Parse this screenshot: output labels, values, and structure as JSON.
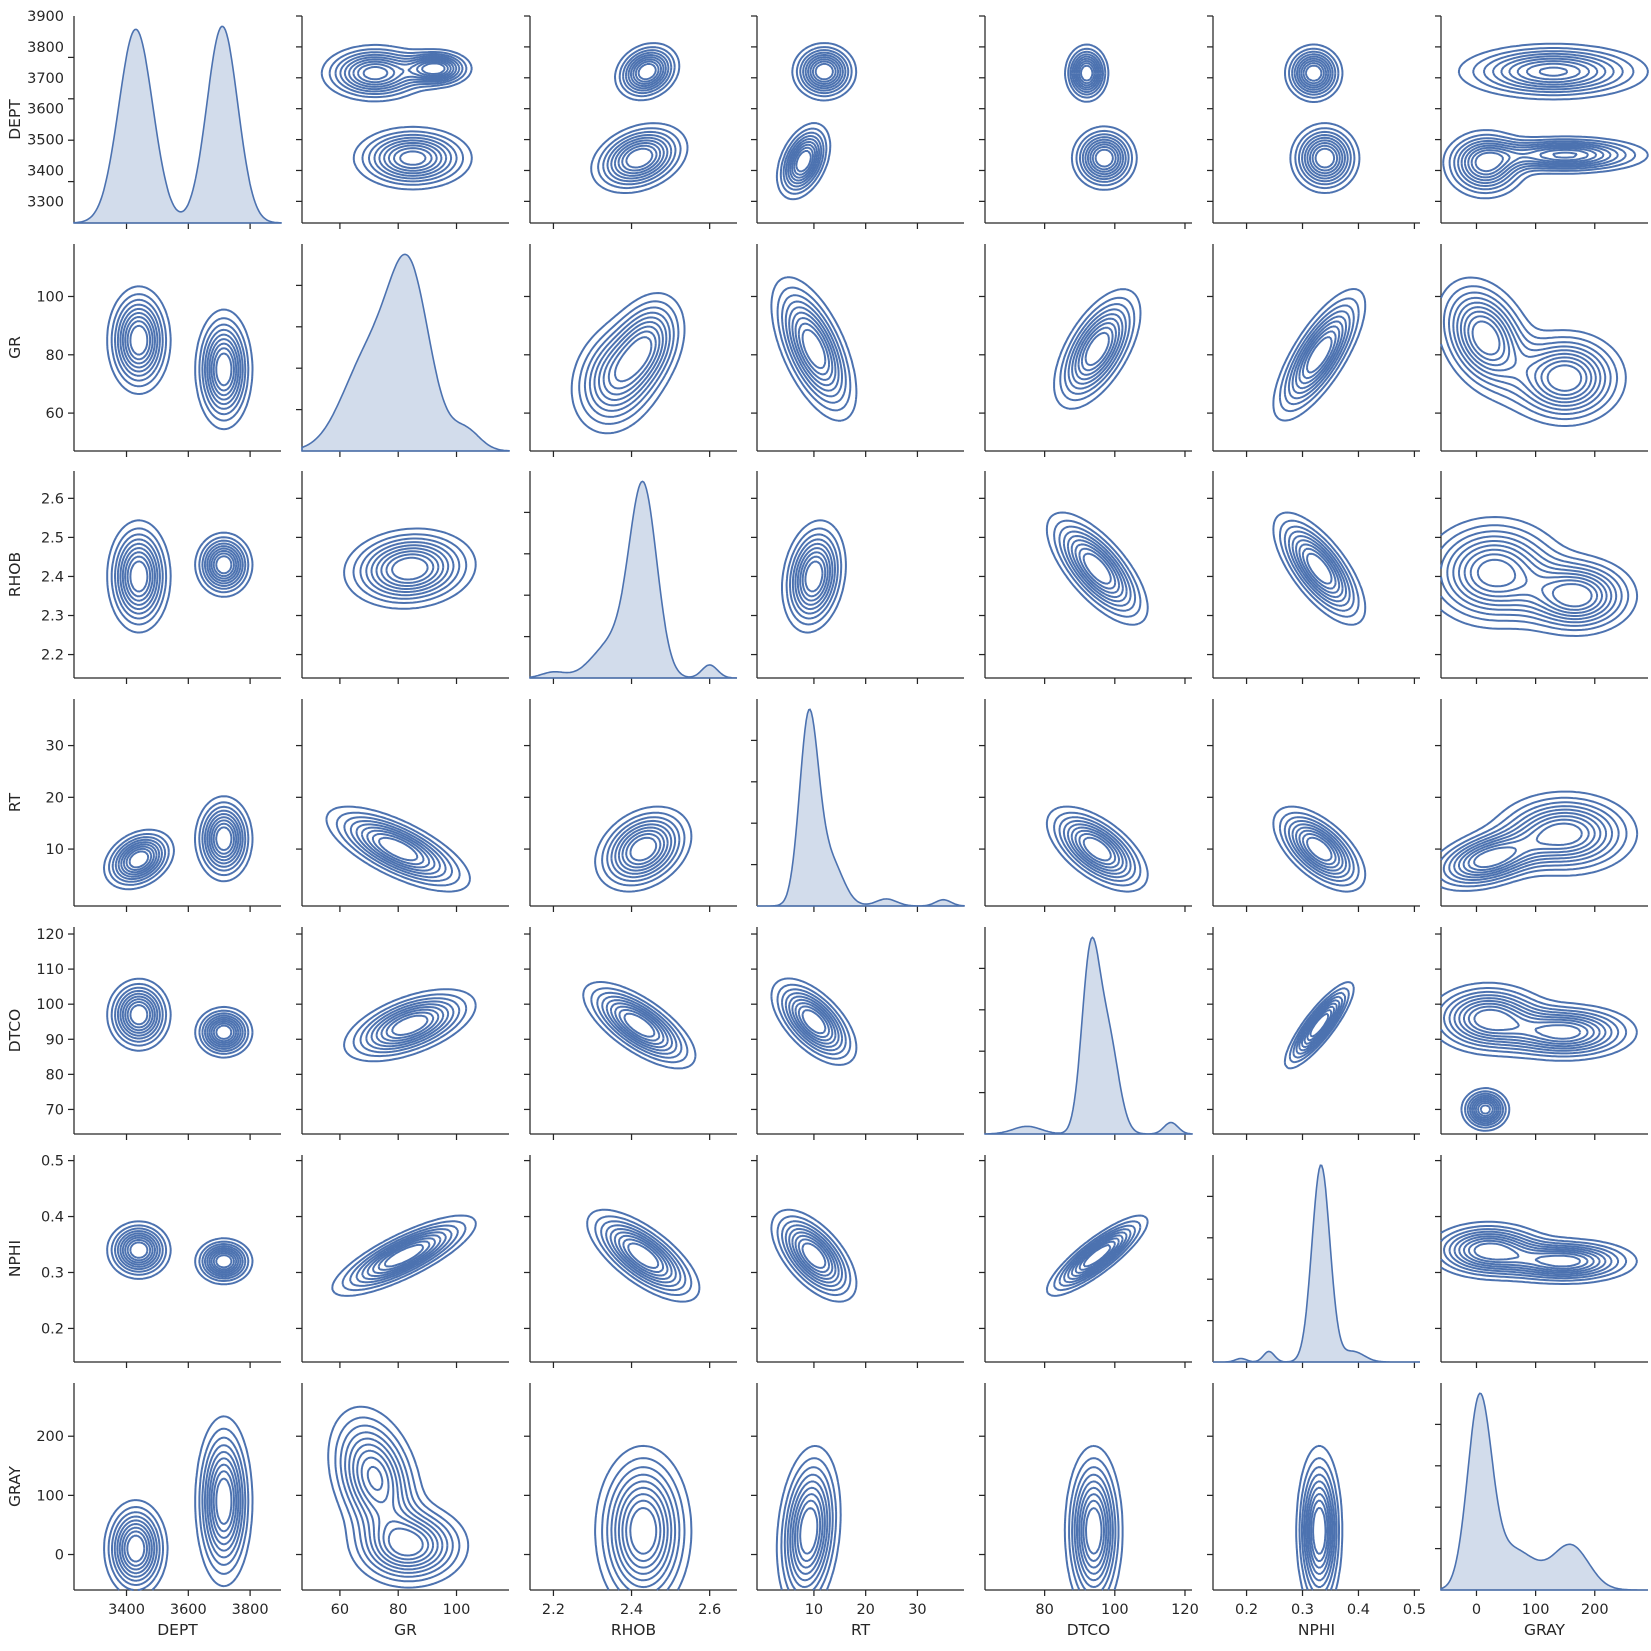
{
  "chart_data": {
    "type": "pairplot-kde",
    "variables": [
      {
        "name": "DEPT",
        "range": [
          3230,
          3900
        ],
        "ticks": [
          3300,
          3400,
          3500,
          3600,
          3700,
          3800,
          3900
        ],
        "xticks": [
          3400,
          3600,
          3800
        ]
      },
      {
        "name": "GR",
        "range": [
          47,
          118
        ],
        "ticks": [
          60,
          80,
          100
        ],
        "xticks": [
          60,
          80,
          100
        ]
      },
      {
        "name": "RHOB",
        "range": [
          2.14,
          2.67
        ],
        "ticks": [
          2.2,
          2.3,
          2.4,
          2.5,
          2.6
        ],
        "xticks": [
          2.2,
          2.4,
          2.6
        ]
      },
      {
        "name": "RT",
        "range": [
          -1,
          39
        ],
        "ticks": [
          10,
          20,
          30
        ],
        "xticks": [
          10,
          20,
          30
        ]
      },
      {
        "name": "DTCO",
        "range": [
          63,
          122
        ],
        "ticks": [
          70,
          80,
          90,
          100,
          110,
          120
        ],
        "xticks": [
          80,
          100,
          120
        ]
      },
      {
        "name": "NPHI",
        "range": [
          0.14,
          0.51
        ],
        "ticks": [
          0.2,
          0.3,
          0.4,
          0.5
        ],
        "xticks": [
          0.2,
          0.3,
          0.4,
          0.5
        ]
      },
      {
        "name": "GRAY",
        "range": [
          -60,
          290
        ],
        "ticks": [
          0,
          100,
          200
        ],
        "xticks": [
          0,
          100,
          200
        ]
      }
    ],
    "diag_peaks": {
      "DEPT": [
        {
          "x": 3430,
          "sd": 55,
          "w": 0.52
        },
        {
          "x": 3710,
          "sd": 50,
          "w": 0.48
        }
      ],
      "GR": [
        {
          "x": 84,
          "sd": 7,
          "w": 0.55
        },
        {
          "x": 70,
          "sd": 9,
          "w": 0.4
        },
        {
          "x": 103,
          "sd": 5,
          "w": 0.05
        }
      ],
      "RHOB": [
        {
          "x": 2.43,
          "sd": 0.035,
          "w": 0.75
        },
        {
          "x": 2.35,
          "sd": 0.05,
          "w": 0.2
        },
        {
          "x": 2.6,
          "sd": 0.02,
          "w": 0.03
        },
        {
          "x": 2.2,
          "sd": 0.03,
          "w": 0.02
        }
      ],
      "RT": [
        {
          "x": 9,
          "sd": 1.8,
          "w": 0.7
        },
        {
          "x": 13,
          "sd": 2.5,
          "w": 0.25
        },
        {
          "x": 24,
          "sd": 2,
          "w": 0.03
        },
        {
          "x": 35,
          "sd": 1.5,
          "w": 0.02
        }
      ],
      "DTCO": [
        {
          "x": 93,
          "sd": 2.5,
          "w": 0.55
        },
        {
          "x": 98,
          "sd": 3,
          "w": 0.38
        },
        {
          "x": 75,
          "sd": 4,
          "w": 0.04
        },
        {
          "x": 116,
          "sd": 2,
          "w": 0.03
        }
      ],
      "NPHI": [
        {
          "x": 0.333,
          "sd": 0.016,
          "w": 0.9
        },
        {
          "x": 0.24,
          "sd": 0.01,
          "w": 0.03
        },
        {
          "x": 0.39,
          "sd": 0.02,
          "w": 0.06
        },
        {
          "x": 0.19,
          "sd": 0.01,
          "w": 0.01
        }
      ],
      "GRAY": [
        {
          "x": 5,
          "sd": 20,
          "w": 0.55
        },
        {
          "x": 60,
          "sd": 40,
          "w": 0.25
        },
        {
          "x": 160,
          "sd": 30,
          "w": 0.2
        }
      ]
    },
    "offdiag_clusters": [
      {
        "pair": [
          "GR",
          "DEPT"
        ],
        "blobs": [
          {
            "x": 85,
            "y": 3440,
            "sx": 10,
            "sy": 50,
            "r": 0
          },
          {
            "x": 72,
            "y": 3715,
            "sx": 9,
            "sy": 45,
            "r": 0
          },
          {
            "x": 93,
            "y": 3730,
            "sx": 6,
            "sy": 30,
            "r": 0
          }
        ]
      },
      {
        "pair": [
          "RHOB",
          "DEPT"
        ],
        "blobs": [
          {
            "x": 2.42,
            "y": 3440,
            "sx": 0.06,
            "sy": 55,
            "r": 0.3
          },
          {
            "x": 2.44,
            "y": 3720,
            "sx": 0.04,
            "sy": 45,
            "r": 0.2
          }
        ]
      },
      {
        "pair": [
          "RT",
          "DEPT"
        ],
        "blobs": [
          {
            "x": 8,
            "y": 3430,
            "sx": 2.5,
            "sy": 60,
            "r": 0.4
          },
          {
            "x": 12,
            "y": 3720,
            "sx": 3,
            "sy": 45,
            "r": 0
          }
        ]
      },
      {
        "pair": [
          "DTCO",
          "DEPT"
        ],
        "blobs": [
          {
            "x": 97,
            "y": 3440,
            "sx": 4.5,
            "sy": 50,
            "r": 0
          },
          {
            "x": 92,
            "y": 3715,
            "sx": 3,
            "sy": 45,
            "r": 0
          }
        ]
      },
      {
        "pair": [
          "NPHI",
          "DEPT"
        ],
        "blobs": [
          {
            "x": 0.34,
            "y": 3440,
            "sx": 0.03,
            "sy": 55,
            "r": 0
          },
          {
            "x": 0.32,
            "y": 3715,
            "sx": 0.025,
            "sy": 45,
            "r": 0
          }
        ]
      },
      {
        "pair": [
          "GRAY",
          "DEPT"
        ],
        "blobs": [
          {
            "x": 15,
            "y": 3420,
            "sx": 35,
            "sy": 55,
            "r": 0
          },
          {
            "x": 130,
            "y": 3720,
            "sx": 80,
            "sy": 45,
            "r": 0
          },
          {
            "x": 150,
            "y": 3450,
            "sx": 70,
            "sy": 30,
            "r": 0
          }
        ]
      },
      {
        "pair": [
          "DEPT",
          "GR"
        ],
        "blobs": [
          {
            "x": 3440,
            "y": 85,
            "sx": 50,
            "sy": 9,
            "r": 0
          },
          {
            "x": 3715,
            "y": 75,
            "sx": 45,
            "sy": 10,
            "r": 0
          }
        ]
      },
      {
        "pair": [
          "RHOB",
          "GR"
        ],
        "blobs": [
          {
            "x": 2.44,
            "y": 84,
            "sx": 0.05,
            "sy": 9,
            "r": 0.3
          },
          {
            "x": 2.36,
            "y": 72,
            "sx": 0.06,
            "sy": 10,
            "r": 0.2
          }
        ]
      },
      {
        "pair": [
          "RT",
          "GR"
        ],
        "blobs": [
          {
            "x": 10,
            "y": 82,
            "sx": 4,
            "sy": 12,
            "r": -0.6
          }
        ]
      },
      {
        "pair": [
          "DTCO",
          "GR"
        ],
        "blobs": [
          {
            "x": 95,
            "y": 82,
            "sx": 6,
            "sy": 10,
            "r": 0.6
          }
        ]
      },
      {
        "pair": [
          "NPHI",
          "GR"
        ],
        "blobs": [
          {
            "x": 0.33,
            "y": 80,
            "sx": 0.04,
            "sy": 11,
            "r": 0.75
          }
        ]
      },
      {
        "pair": [
          "GRAY",
          "GR"
        ],
        "blobs": [
          {
            "x": 15,
            "y": 86,
            "sx": 40,
            "sy": 10,
            "r": -0.3
          },
          {
            "x": 150,
            "y": 72,
            "sx": 50,
            "sy": 8,
            "r": 0
          }
        ]
      },
      {
        "pair": [
          "DEPT",
          "RHOB"
        ],
        "blobs": [
          {
            "x": 3440,
            "y": 2.4,
            "sx": 50,
            "sy": 0.07,
            "r": 0
          },
          {
            "x": 3715,
            "y": 2.43,
            "sx": 45,
            "sy": 0.04,
            "r": 0
          }
        ]
      },
      {
        "pair": [
          "GR",
          "RHOB"
        ],
        "blobs": [
          {
            "x": 84,
            "y": 2.42,
            "sx": 11,
            "sy": 0.05,
            "r": 0.1
          }
        ]
      },
      {
        "pair": [
          "RT",
          "RHOB"
        ],
        "blobs": [
          {
            "x": 10,
            "y": 2.4,
            "sx": 3,
            "sy": 0.07,
            "r": 0.2
          }
        ]
      },
      {
        "pair": [
          "DTCO",
          "RHOB"
        ],
        "blobs": [
          {
            "x": 95,
            "y": 2.42,
            "sx": 7,
            "sy": 0.07,
            "r": -0.7
          }
        ]
      },
      {
        "pair": [
          "NPHI",
          "RHOB"
        ],
        "blobs": [
          {
            "x": 0.33,
            "y": 2.42,
            "sx": 0.04,
            "sy": 0.07,
            "r": -0.7
          }
        ]
      },
      {
        "pair": [
          "GRAY",
          "RHOB"
        ],
        "blobs": [
          {
            "x": 30,
            "y": 2.41,
            "sx": 60,
            "sy": 0.07,
            "r": 0
          },
          {
            "x": 170,
            "y": 2.35,
            "sx": 50,
            "sy": 0.05,
            "r": 0
          }
        ]
      },
      {
        "pair": [
          "DEPT",
          "RT"
        ],
        "blobs": [
          {
            "x": 3440,
            "y": 8,
            "sx": 55,
            "sy": 2.8,
            "r": 0.3
          },
          {
            "x": 3715,
            "y": 12,
            "sx": 45,
            "sy": 4,
            "r": 0
          }
        ]
      },
      {
        "pair": [
          "GR",
          "RT"
        ],
        "blobs": [
          {
            "x": 80,
            "y": 10,
            "sx": 12,
            "sy": 4,
            "r": -0.7
          }
        ]
      },
      {
        "pair": [
          "RHOB",
          "RT"
        ],
        "blobs": [
          {
            "x": 2.43,
            "y": 10,
            "sx": 0.06,
            "sy": 4,
            "r": 0.3
          }
        ]
      },
      {
        "pair": [
          "DTCO",
          "RT"
        ],
        "blobs": [
          {
            "x": 95,
            "y": 10,
            "sx": 7,
            "sy": 4,
            "r": -0.6
          }
        ]
      },
      {
        "pair": [
          "NPHI",
          "RT"
        ],
        "blobs": [
          {
            "x": 0.33,
            "y": 10,
            "sx": 0.04,
            "sy": 4,
            "r": -0.6
          }
        ]
      },
      {
        "pair": [
          "GRAY",
          "RT"
        ],
        "blobs": [
          {
            "x": 20,
            "y": 8,
            "sx": 50,
            "sy": 3,
            "r": 0.4
          },
          {
            "x": 150,
            "y": 13,
            "sx": 60,
            "sy": 4,
            "r": 0
          }
        ]
      },
      {
        "pair": [
          "DEPT",
          "DTCO"
        ],
        "blobs": [
          {
            "x": 3440,
            "y": 97,
            "sx": 50,
            "sy": 5,
            "r": 0
          },
          {
            "x": 3715,
            "y": 92,
            "sx": 45,
            "sy": 3.5,
            "r": 0
          }
        ]
      },
      {
        "pair": [
          "GR",
          "DTCO"
        ],
        "blobs": [
          {
            "x": 84,
            "y": 94,
            "sx": 11,
            "sy": 5,
            "r": 0.55
          }
        ]
      },
      {
        "pair": [
          "RHOB",
          "DTCO"
        ],
        "blobs": [
          {
            "x": 2.42,
            "y": 94,
            "sx": 0.07,
            "sy": 6,
            "r": -0.7
          }
        ]
      },
      {
        "pair": [
          "RT",
          "DTCO"
        ],
        "blobs": [
          {
            "x": 10,
            "y": 95,
            "sx": 4,
            "sy": 6,
            "r": -0.6
          }
        ]
      },
      {
        "pair": [
          "NPHI",
          "DTCO"
        ],
        "blobs": [
          {
            "x": 0.33,
            "y": 94,
            "sx": 0.03,
            "sy": 6,
            "r": 0.85
          }
        ]
      },
      {
        "pair": [
          "GRAY",
          "DTCO"
        ],
        "blobs": [
          {
            "x": 20,
            "y": 96,
            "sx": 50,
            "sy": 5,
            "r": 0
          },
          {
            "x": 150,
            "y": 92,
            "sx": 60,
            "sy": 4,
            "r": 0
          },
          {
            "x": 15,
            "y": 70,
            "sx": 20,
            "sy": 3,
            "r": 0
          }
        ]
      },
      {
        "pair": [
          "DEPT",
          "NPHI"
        ],
        "blobs": [
          {
            "x": 3440,
            "y": 0.34,
            "sx": 50,
            "sy": 0.025,
            "r": 0
          },
          {
            "x": 3715,
            "y": 0.32,
            "sx": 45,
            "sy": 0.02,
            "r": 0
          }
        ]
      },
      {
        "pair": [
          "GR",
          "NPHI"
        ],
        "blobs": [
          {
            "x": 82,
            "y": 0.33,
            "sx": 12,
            "sy": 0.035,
            "r": 0.8
          }
        ]
      },
      {
        "pair": [
          "RHOB",
          "NPHI"
        ],
        "blobs": [
          {
            "x": 2.43,
            "y": 0.33,
            "sx": 0.07,
            "sy": 0.04,
            "r": -0.7
          }
        ]
      },
      {
        "pair": [
          "RT",
          "NPHI"
        ],
        "blobs": [
          {
            "x": 10,
            "y": 0.33,
            "sx": 4,
            "sy": 0.04,
            "r": -0.6
          }
        ]
      },
      {
        "pair": [
          "DTCO",
          "NPHI"
        ],
        "blobs": [
          {
            "x": 95,
            "y": 0.33,
            "sx": 7,
            "sy": 0.035,
            "r": 0.85
          }
        ]
      },
      {
        "pair": [
          "GRAY",
          "NPHI"
        ],
        "blobs": [
          {
            "x": 20,
            "y": 0.34,
            "sx": 50,
            "sy": 0.025,
            "r": 0
          },
          {
            "x": 150,
            "y": 0.32,
            "sx": 60,
            "sy": 0.02,
            "r": 0
          }
        ]
      },
      {
        "pair": [
          "DEPT",
          "GRAY"
        ],
        "blobs": [
          {
            "x": 3430,
            "y": 10,
            "sx": 50,
            "sy": 40,
            "r": 0
          },
          {
            "x": 3715,
            "y": 90,
            "sx": 45,
            "sy": 70,
            "r": 0
          }
        ]
      },
      {
        "pair": [
          "GR",
          "GRAY"
        ],
        "blobs": [
          {
            "x": 84,
            "y": 15,
            "sx": 10,
            "sy": 35,
            "r": 0
          },
          {
            "x": 72,
            "y": 130,
            "sx": 8,
            "sy": 60,
            "r": -0.3
          }
        ]
      },
      {
        "pair": [
          "RHOB",
          "GRAY"
        ],
        "blobs": [
          {
            "x": 2.43,
            "y": 40,
            "sx": 0.06,
            "sy": 70,
            "r": 0
          }
        ]
      },
      {
        "pair": [
          "RT",
          "GRAY"
        ],
        "blobs": [
          {
            "x": 9,
            "y": 40,
            "sx": 3,
            "sy": 70,
            "r": 0.2
          }
        ]
      },
      {
        "pair": [
          "DTCO",
          "GRAY"
        ],
        "blobs": [
          {
            "x": 94,
            "y": 40,
            "sx": 4,
            "sy": 70,
            "r": 0
          }
        ]
      },
      {
        "pair": [
          "NPHI",
          "GRAY"
        ],
        "blobs": [
          {
            "x": 0.33,
            "y": 40,
            "sx": 0.02,
            "sy": 70,
            "r": 0
          }
        ]
      }
    ],
    "contour_levels": 9,
    "line_color": "#4c72b0",
    "grid": false,
    "legend": "none"
  }
}
